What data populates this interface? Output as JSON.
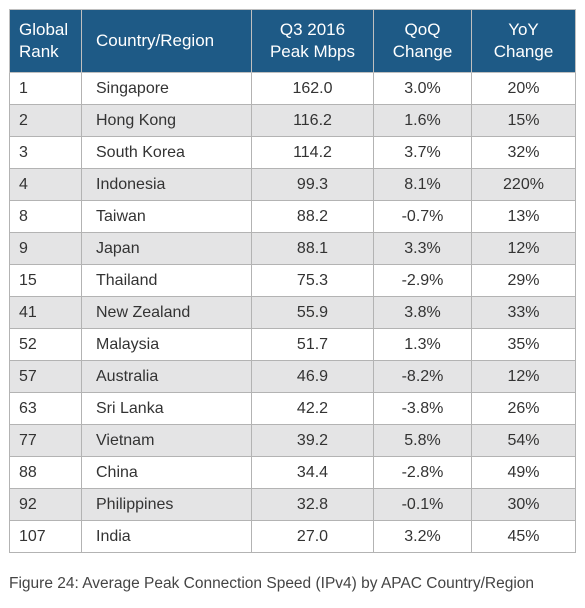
{
  "table": {
    "headers": {
      "rank_line1": "Global",
      "rank_line2": "Rank",
      "country": "Country/Region",
      "peak_line1": "Q3 2016",
      "peak_line2": "Peak Mbps",
      "qoq_line1": "QoQ",
      "qoq_line2": "Change",
      "yoy_line1": "YoY",
      "yoy_line2": "Change"
    },
    "rows": [
      {
        "rank": "1",
        "country": "Singapore",
        "peak": "162.0",
        "qoq": "3.0%",
        "yoy": "20%"
      },
      {
        "rank": "2",
        "country": "Hong Kong",
        "peak": "116.2",
        "qoq": "1.6%",
        "yoy": "15%"
      },
      {
        "rank": "3",
        "country": "South Korea",
        "peak": "114.2",
        "qoq": "3.7%",
        "yoy": "32%"
      },
      {
        "rank": "4",
        "country": "Indonesia",
        "peak": "99.3",
        "qoq": "8.1%",
        "yoy": "220%"
      },
      {
        "rank": "8",
        "country": "Taiwan",
        "peak": "88.2",
        "qoq": "-0.7%",
        "yoy": "13%"
      },
      {
        "rank": "9",
        "country": "Japan",
        "peak": "88.1",
        "qoq": "3.3%",
        "yoy": "12%"
      },
      {
        "rank": "15",
        "country": "Thailand",
        "peak": "75.3",
        "qoq": "-2.9%",
        "yoy": "29%"
      },
      {
        "rank": "41",
        "country": "New Zealand",
        "peak": "55.9",
        "qoq": "3.8%",
        "yoy": "33%"
      },
      {
        "rank": "52",
        "country": "Malaysia",
        "peak": "51.7",
        "qoq": "1.3%",
        "yoy": "35%"
      },
      {
        "rank": "57",
        "country": "Australia",
        "peak": "46.9",
        "qoq": "-8.2%",
        "yoy": "12%"
      },
      {
        "rank": "63",
        "country": "Sri Lanka",
        "peak": "42.2",
        "qoq": "-3.8%",
        "yoy": "26%"
      },
      {
        "rank": "77",
        "country": "Vietnam",
        "peak": "39.2",
        "qoq": "5.8%",
        "yoy": "54%"
      },
      {
        "rank": "88",
        "country": "China",
        "peak": "34.4",
        "qoq": "-2.8%",
        "yoy": "49%"
      },
      {
        "rank": "92",
        "country": "Philippines",
        "peak": "32.8",
        "qoq": "-0.1%",
        "yoy": "30%"
      },
      {
        "rank": "107",
        "country": "India",
        "peak": "27.0",
        "qoq": "3.2%",
        "yoy": "45%"
      }
    ]
  },
  "caption": "Figure 24: Average Peak Connection Speed (IPv4) by APAC Country/Region",
  "colors": {
    "header_bg": "#1e5a86",
    "row_alt_bg": "#e4e4e5"
  }
}
